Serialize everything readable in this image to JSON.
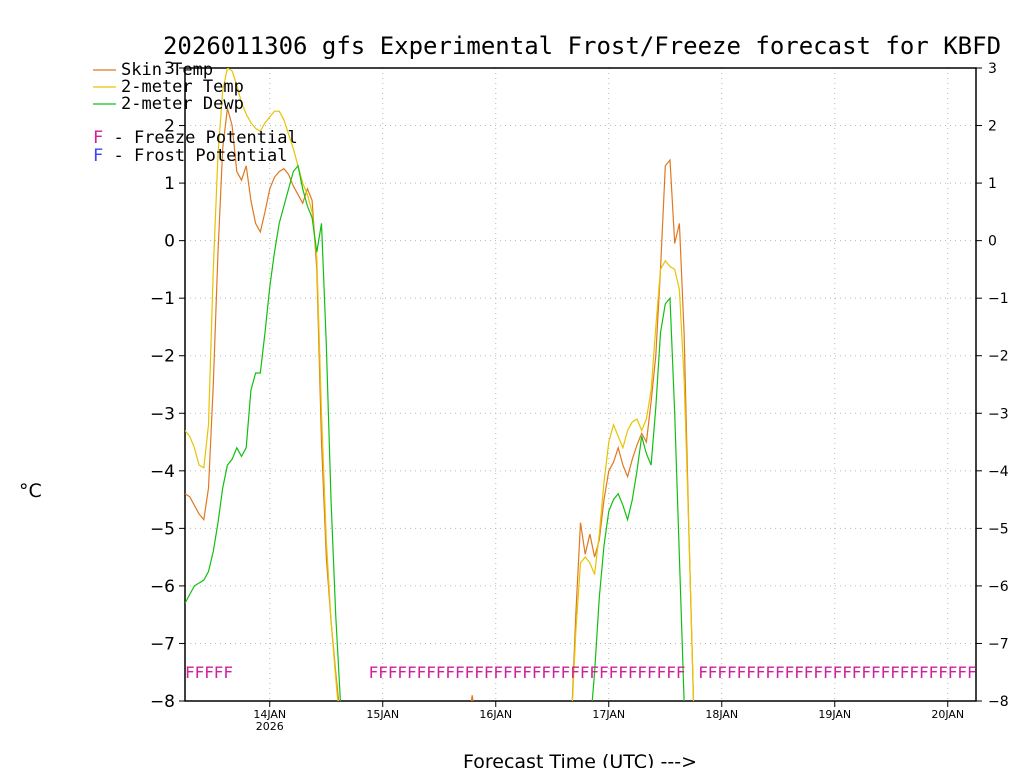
{
  "chart_data": {
    "type": "line",
    "title": "2026011306 gfs Experimental Frost/Freeze forecast for KBFD",
    "ylabel": "°C",
    "xlabel": "Forecast Time (UTC) --->",
    "ylim": [
      -8,
      3
    ],
    "yticks": [
      -8,
      -7,
      -6,
      -5,
      -4,
      -3,
      -2,
      -1,
      0,
      1,
      2,
      3
    ],
    "yticks_left": [
      "−8",
      "−7",
      "−6",
      "−5",
      "−4",
      "−3",
      "−2",
      "−1",
      "0",
      "1",
      "2",
      "3"
    ],
    "yticks_right": [
      "−8",
      "−7",
      "−6",
      "−5",
      "−4",
      "−3",
      "−2",
      "−1",
      "0",
      "1",
      "2",
      "3"
    ],
    "xlim_hours": [
      0,
      168
    ],
    "xticks": [
      {
        "hour": 18,
        "label": "14JAN",
        "sub": "2026"
      },
      {
        "hour": 42,
        "label": "15JAN",
        "sub": ""
      },
      {
        "hour": 66,
        "label": "16JAN",
        "sub": ""
      },
      {
        "hour": 90,
        "label": "17JAN",
        "sub": ""
      },
      {
        "hour": 114,
        "label": "18JAN",
        "sub": ""
      },
      {
        "hour": 138,
        "label": "19JAN",
        "sub": ""
      },
      {
        "hour": 162,
        "label": "20JAN",
        "sub": ""
      }
    ],
    "legend": [
      "Skin Temp",
      "2-meter Temp",
      "2-meter Dewp"
    ],
    "potential_legend": {
      "freeze": {
        "letter": "F",
        "text": " - Freeze Potential",
        "color": "#d0209a"
      },
      "frost": {
        "letter": "F",
        "text": " - Frost Potential",
        "color": "#4040ff"
      }
    },
    "series": [
      {
        "name": "Skin Temp",
        "color": "#e07820",
        "points": [
          [
            0,
            -4.4
          ],
          [
            1,
            -4.45
          ],
          [
            2,
            -4.6
          ],
          [
            3,
            -4.75
          ],
          [
            4,
            -4.85
          ],
          [
            5,
            -4.3
          ],
          [
            6,
            -2.5
          ],
          [
            7,
            -0.2
          ],
          [
            8,
            1.6
          ],
          [
            9,
            2.3
          ],
          [
            10,
            2.0
          ],
          [
            11,
            1.2
          ],
          [
            12,
            1.05
          ],
          [
            13,
            1.3
          ],
          [
            14,
            0.7
          ],
          [
            15,
            0.3
          ],
          [
            16,
            0.15
          ],
          [
            17,
            0.5
          ],
          [
            18,
            0.9
          ],
          [
            19,
            1.1
          ],
          [
            20,
            1.2
          ],
          [
            21,
            1.25
          ],
          [
            22,
            1.15
          ],
          [
            23,
            0.95
          ],
          [
            24,
            0.8
          ],
          [
            25,
            0.65
          ],
          [
            26,
            0.9
          ],
          [
            27,
            0.7
          ],
          [
            28,
            -0.5
          ],
          [
            29,
            -3.5
          ],
          [
            30,
            -5.5
          ],
          [
            31,
            -6.6
          ],
          [
            32,
            -7.5
          ],
          [
            33,
            -8.3
          ],
          [
            35,
            -8.5
          ],
          [
            60,
            -8.5
          ],
          [
            61,
            -7.9
          ],
          [
            62,
            -8.5
          ],
          [
            82,
            -8.5
          ],
          [
            83,
            -6.5
          ],
          [
            84,
            -4.9
          ],
          [
            85,
            -5.45
          ],
          [
            86,
            -5.1
          ],
          [
            87,
            -5.5
          ],
          [
            88,
            -5.2
          ],
          [
            89,
            -4.5
          ],
          [
            90,
            -4.0
          ],
          [
            91,
            -3.85
          ],
          [
            92,
            -3.6
          ],
          [
            93,
            -3.9
          ],
          [
            94,
            -4.1
          ],
          [
            95,
            -3.8
          ],
          [
            96,
            -3.55
          ],
          [
            97,
            -3.35
          ],
          [
            98,
            -3.5
          ],
          [
            99,
            -2.8
          ],
          [
            100,
            -2.0
          ],
          [
            101,
            -0.5
          ],
          [
            102,
            1.3
          ],
          [
            103,
            1.4
          ],
          [
            104,
            -0.05
          ],
          [
            105,
            0.3
          ],
          [
            106,
            -1.6
          ],
          [
            107,
            -5.0
          ],
          [
            108,
            -8.0
          ],
          [
            109,
            -8.5
          ]
        ]
      },
      {
        "name": "2-meter Temp",
        "color": "#e6c400",
        "points": [
          [
            0,
            -3.3
          ],
          [
            1,
            -3.4
          ],
          [
            2,
            -3.6
          ],
          [
            3,
            -3.9
          ],
          [
            4,
            -3.95
          ],
          [
            5,
            -3.2
          ],
          [
            6,
            -0.5
          ],
          [
            7,
            1.5
          ],
          [
            8,
            2.6
          ],
          [
            9,
            3.0
          ],
          [
            10,
            2.95
          ],
          [
            11,
            2.7
          ],
          [
            12,
            2.4
          ],
          [
            13,
            2.2
          ],
          [
            14,
            2.05
          ],
          [
            15,
            1.95
          ],
          [
            16,
            1.9
          ],
          [
            17,
            2.05
          ],
          [
            18,
            2.15
          ],
          [
            19,
            2.25
          ],
          [
            20,
            2.25
          ],
          [
            21,
            2.1
          ],
          [
            22,
            1.85
          ],
          [
            23,
            1.6
          ],
          [
            24,
            1.3
          ],
          [
            25,
            1.0
          ],
          [
            26,
            0.8
          ],
          [
            27,
            0.5
          ],
          [
            28,
            -0.3
          ],
          [
            29,
            -3.0
          ],
          [
            30,
            -5.2
          ],
          [
            31,
            -6.6
          ],
          [
            32,
            -7.6
          ],
          [
            33,
            -8.5
          ],
          [
            82,
            -8.5
          ],
          [
            83,
            -6.8
          ],
          [
            84,
            -5.6
          ],
          [
            85,
            -5.5
          ],
          [
            86,
            -5.6
          ],
          [
            87,
            -5.8
          ],
          [
            88,
            -5.1
          ],
          [
            89,
            -4.2
          ],
          [
            90,
            -3.5
          ],
          [
            91,
            -3.2
          ],
          [
            92,
            -3.4
          ],
          [
            93,
            -3.6
          ],
          [
            94,
            -3.3
          ],
          [
            95,
            -3.15
          ],
          [
            96,
            -3.1
          ],
          [
            97,
            -3.3
          ],
          [
            98,
            -3.1
          ],
          [
            99,
            -2.6
          ],
          [
            100,
            -1.5
          ],
          [
            101,
            -0.5
          ],
          [
            102,
            -0.35
          ],
          [
            103,
            -0.45
          ],
          [
            104,
            -0.5
          ],
          [
            105,
            -0.85
          ],
          [
            106,
            -2.4
          ],
          [
            107,
            -5.0
          ],
          [
            108,
            -8.0
          ],
          [
            109,
            -8.5
          ]
        ]
      },
      {
        "name": "2-meter Dewp",
        "color": "#10c010",
        "points": [
          [
            0,
            -6.3
          ],
          [
            1,
            -6.15
          ],
          [
            2,
            -6.0
          ],
          [
            3,
            -5.95
          ],
          [
            4,
            -5.9
          ],
          [
            5,
            -5.75
          ],
          [
            6,
            -5.4
          ],
          [
            7,
            -4.9
          ],
          [
            8,
            -4.3
          ],
          [
            9,
            -3.9
          ],
          [
            10,
            -3.8
          ],
          [
            11,
            -3.6
          ],
          [
            12,
            -3.75
          ],
          [
            13,
            -3.6
          ],
          [
            14,
            -2.6
          ],
          [
            15,
            -2.3
          ],
          [
            16,
            -2.3
          ],
          [
            17,
            -1.6
          ],
          [
            18,
            -0.8
          ],
          [
            19,
            -0.2
          ],
          [
            20,
            0.3
          ],
          [
            21,
            0.6
          ],
          [
            22,
            0.9
          ],
          [
            23,
            1.2
          ],
          [
            24,
            1.3
          ],
          [
            25,
            0.9
          ],
          [
            26,
            0.6
          ],
          [
            27,
            0.4
          ],
          [
            28,
            -0.2
          ],
          [
            29,
            0.3
          ],
          [
            30,
            -1.8
          ],
          [
            31,
            -4.5
          ],
          [
            32,
            -6.5
          ],
          [
            33,
            -8.0
          ],
          [
            34,
            -8.5
          ],
          [
            86,
            -8.5
          ],
          [
            87,
            -7.5
          ],
          [
            88,
            -6.2
          ],
          [
            89,
            -5.3
          ],
          [
            90,
            -4.7
          ],
          [
            91,
            -4.5
          ],
          [
            92,
            -4.4
          ],
          [
            93,
            -4.6
          ],
          [
            94,
            -4.85
          ],
          [
            95,
            -4.5
          ],
          [
            96,
            -4.0
          ],
          [
            97,
            -3.4
          ],
          [
            98,
            -3.7
          ],
          [
            99,
            -3.9
          ],
          [
            100,
            -2.9
          ],
          [
            101,
            -1.6
          ],
          [
            102,
            -1.1
          ],
          [
            103,
            -1.0
          ],
          [
            104,
            -3.0
          ],
          [
            105,
            -5.5
          ],
          [
            106,
            -8.0
          ],
          [
            107,
            -8.5
          ]
        ]
      }
    ],
    "potential_markers": {
      "y": -7.5,
      "letter": "F",
      "hour_ranges": [
        [
          0,
          10
        ],
        [
          39,
          105
        ],
        [
          109,
          168
        ]
      ]
    }
  }
}
